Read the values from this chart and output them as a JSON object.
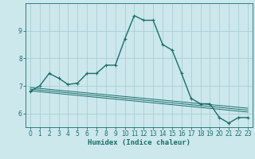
{
  "xlabel": "Humidex (Indice chaleur)",
  "ylabel": "",
  "bg_color": "#cce8ec",
  "grid_color": "#aacdd4",
  "line_color": "#1a6e6a",
  "xlim": [
    -0.5,
    23.5
  ],
  "ylim": [
    5.5,
    10.0
  ],
  "xticks": [
    0,
    1,
    2,
    3,
    4,
    5,
    6,
    7,
    8,
    9,
    10,
    11,
    12,
    13,
    14,
    15,
    16,
    17,
    18,
    19,
    20,
    21,
    22,
    23
  ],
  "yticks": [
    6,
    7,
    8,
    9
  ],
  "series_main": {
    "x": [
      0,
      1,
      2,
      3,
      4,
      5,
      6,
      7,
      8,
      9,
      10,
      11,
      12,
      13,
      14,
      15,
      16,
      17,
      18,
      19,
      20,
      21,
      22,
      23
    ],
    "y": [
      6.8,
      7.0,
      7.45,
      7.28,
      7.05,
      7.1,
      7.45,
      7.45,
      7.75,
      7.75,
      8.7,
      9.55,
      9.38,
      9.38,
      8.5,
      8.3,
      7.45,
      6.55,
      6.35,
      6.35,
      5.85,
      5.65,
      5.85,
      5.85
    ]
  },
  "series_lines": [
    {
      "x": [
        0,
        23
      ],
      "y": [
        6.82,
        6.05
      ]
    },
    {
      "x": [
        0,
        23
      ],
      "y": [
        6.88,
        6.12
      ]
    },
    {
      "x": [
        0,
        23
      ],
      "y": [
        6.94,
        6.19
      ]
    }
  ],
  "markersize": 3.5,
  "linewidth": 1.0
}
